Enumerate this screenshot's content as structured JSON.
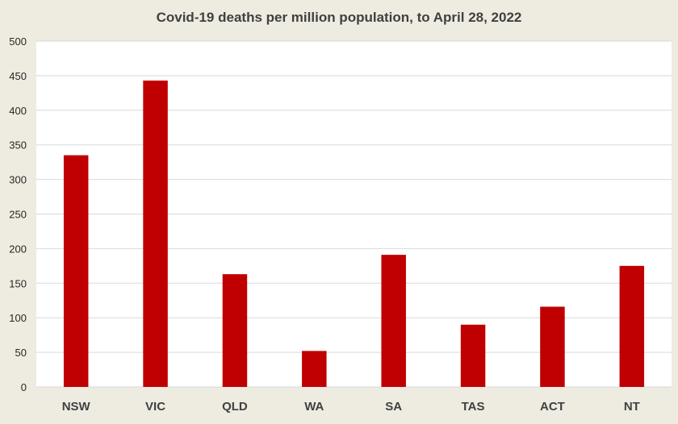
{
  "chart_data": {
    "type": "bar",
    "title": "Covid-19 deaths per million population, to April 28, 2022",
    "xlabel": "",
    "ylabel": "",
    "categories": [
      "NSW",
      "VIC",
      "QLD",
      "WA",
      "SA",
      "TAS",
      "ACT",
      "NT"
    ],
    "values": [
      335,
      443,
      163,
      52,
      191,
      90,
      116,
      175
    ],
    "ylim": [
      0,
      500
    ],
    "yticks": [
      "0",
      "50",
      "100",
      "150",
      "200",
      "250",
      "300",
      "350",
      "400",
      "450",
      "500"
    ],
    "grid": true,
    "legend": "none",
    "colors": {
      "bar": "#c00000",
      "plot_background": "#ffffff",
      "page_background": "#eeece1",
      "grid": "#d9d9d9"
    }
  }
}
